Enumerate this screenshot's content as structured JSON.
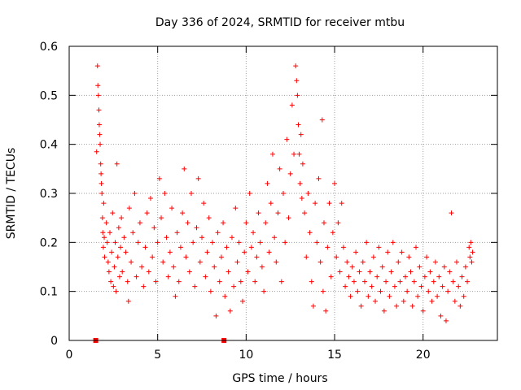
{
  "chart_data": {
    "type": "scatter",
    "title": "Day 336 of 2024, SRMTID for receiver mtbu",
    "xlabel": "GPS time / hours",
    "ylabel": "SRMTID / TECUs",
    "xlim": [
      0,
      24.2
    ],
    "ylim": [
      0,
      0.6
    ],
    "xticks": [
      0,
      5,
      10,
      15,
      20
    ],
    "yticks": [
      0,
      0.1,
      0.2,
      0.3,
      0.4,
      0.5,
      0.6
    ],
    "xtick_labels": [
      "0",
      "5",
      "10",
      "15",
      "20"
    ],
    "ytick_labels": [
      "0",
      "0.1",
      "0.2",
      "0.3",
      "0.4",
      "0.5",
      "0.6"
    ],
    "grid": true,
    "marker": "plus",
    "color": "#ff0000",
    "series": [
      {
        "name": "SRMTID",
        "points": [
          [
            1.5,
            0.0
          ],
          [
            8.75,
            0.0
          ],
          [
            1.55,
            0.385
          ],
          [
            1.6,
            0.56
          ],
          [
            1.62,
            0.52
          ],
          [
            1.65,
            0.5
          ],
          [
            1.68,
            0.47
          ],
          [
            1.7,
            0.44
          ],
          [
            1.72,
            0.42
          ],
          [
            1.75,
            0.4
          ],
          [
            1.78,
            0.36
          ],
          [
            1.8,
            0.34
          ],
          [
            1.82,
            0.32
          ],
          [
            1.85,
            0.3
          ],
          [
            1.88,
            0.25
          ],
          [
            1.9,
            0.22
          ],
          [
            1.93,
            0.19
          ],
          [
            1.95,
            0.28
          ],
          [
            1.98,
            0.21
          ],
          [
            2.0,
            0.17
          ],
          [
            2.1,
            0.24
          ],
          [
            2.15,
            0.2
          ],
          [
            2.2,
            0.16
          ],
          [
            2.25,
            0.14
          ],
          [
            2.3,
            0.22
          ],
          [
            2.35,
            0.12
          ],
          [
            2.4,
            0.18
          ],
          [
            2.45,
            0.26
          ],
          [
            2.5,
            0.11
          ],
          [
            2.55,
            0.15
          ],
          [
            2.6,
            0.2
          ],
          [
            2.65,
            0.1
          ],
          [
            2.7,
            0.36
          ],
          [
            2.75,
            0.17
          ],
          [
            2.8,
            0.23
          ],
          [
            2.85,
            0.13
          ],
          [
            2.9,
            0.19
          ],
          [
            2.95,
            0.25
          ],
          [
            3.0,
            0.14
          ],
          [
            3.1,
            0.21
          ],
          [
            3.2,
            0.18
          ],
          [
            3.3,
            0.12
          ],
          [
            3.35,
            0.08
          ],
          [
            3.4,
            0.27
          ],
          [
            3.5,
            0.16
          ],
          [
            3.6,
            0.22
          ],
          [
            3.7,
            0.3
          ],
          [
            3.8,
            0.13
          ],
          [
            3.9,
            0.2
          ],
          [
            4.0,
            0.24
          ],
          [
            4.1,
            0.15
          ],
          [
            4.2,
            0.11
          ],
          [
            4.3,
            0.19
          ],
          [
            4.4,
            0.26
          ],
          [
            4.5,
            0.14
          ],
          [
            4.6,
            0.29
          ],
          [
            4.7,
            0.17
          ],
          [
            4.8,
            0.23
          ],
          [
            4.9,
            0.12
          ],
          [
            5.0,
            0.2
          ],
          [
            5.1,
            0.33
          ],
          [
            5.2,
            0.25
          ],
          [
            5.3,
            0.16
          ],
          [
            5.4,
            0.3
          ],
          [
            5.5,
            0.21
          ],
          [
            5.6,
            0.13
          ],
          [
            5.7,
            0.18
          ],
          [
            5.8,
            0.27
          ],
          [
            5.9,
            0.15
          ],
          [
            6.0,
            0.09
          ],
          [
            6.1,
            0.22
          ],
          [
            6.2,
            0.12
          ],
          [
            6.3,
            0.19
          ],
          [
            6.4,
            0.26
          ],
          [
            6.5,
            0.35
          ],
          [
            6.6,
            0.17
          ],
          [
            6.7,
            0.24
          ],
          [
            6.8,
            0.14
          ],
          [
            6.9,
            0.3
          ],
          [
            7.0,
            0.2
          ],
          [
            7.1,
            0.11
          ],
          [
            7.2,
            0.23
          ],
          [
            7.3,
            0.33
          ],
          [
            7.4,
            0.16
          ],
          [
            7.5,
            0.21
          ],
          [
            7.6,
            0.28
          ],
          [
            7.7,
            0.13
          ],
          [
            7.8,
            0.18
          ],
          [
            7.9,
            0.25
          ],
          [
            8.0,
            0.1
          ],
          [
            8.1,
            0.2
          ],
          [
            8.2,
            0.15
          ],
          [
            8.3,
            0.05
          ],
          [
            8.4,
            0.22
          ],
          [
            8.5,
            0.12
          ],
          [
            8.6,
            0.17
          ],
          [
            8.7,
            0.24
          ],
          [
            8.8,
            0.09
          ],
          [
            8.9,
            0.19
          ],
          [
            9.0,
            0.14
          ],
          [
            9.1,
            0.06
          ],
          [
            9.2,
            0.21
          ],
          [
            9.3,
            0.11
          ],
          [
            9.4,
            0.27
          ],
          [
            9.5,
            0.16
          ],
          [
            9.6,
            0.2
          ],
          [
            9.7,
            0.12
          ],
          [
            9.8,
            0.08
          ],
          [
            9.9,
            0.18
          ],
          [
            10.0,
            0.24
          ],
          [
            10.1,
            0.14
          ],
          [
            10.2,
            0.3
          ],
          [
            10.3,
            0.19
          ],
          [
            10.4,
            0.22
          ],
          [
            10.5,
            0.12
          ],
          [
            10.6,
            0.17
          ],
          [
            10.7,
            0.26
          ],
          [
            10.8,
            0.2
          ],
          [
            10.9,
            0.15
          ],
          [
            11.0,
            0.1
          ],
          [
            11.1,
            0.24
          ],
          [
            11.2,
            0.32
          ],
          [
            11.3,
            0.18
          ],
          [
            11.4,
            0.28
          ],
          [
            11.5,
            0.38
          ],
          [
            11.6,
            0.21
          ],
          [
            11.7,
            0.16
          ],
          [
            11.8,
            0.26
          ],
          [
            11.9,
            0.35
          ],
          [
            12.0,
            0.12
          ],
          [
            12.1,
            0.3
          ],
          [
            12.2,
            0.2
          ],
          [
            12.3,
            0.41
          ],
          [
            12.4,
            0.25
          ],
          [
            12.5,
            0.34
          ],
          [
            12.6,
            0.48
          ],
          [
            12.7,
            0.38
          ],
          [
            12.8,
            0.56
          ],
          [
            12.85,
            0.53
          ],
          [
            12.9,
            0.5
          ],
          [
            12.95,
            0.44
          ],
          [
            13.0,
            0.38
          ],
          [
            13.05,
            0.32
          ],
          [
            13.1,
            0.42
          ],
          [
            13.15,
            0.29
          ],
          [
            13.2,
            0.36
          ],
          [
            13.3,
            0.26
          ],
          [
            13.4,
            0.17
          ],
          [
            13.5,
            0.3
          ],
          [
            13.6,
            0.22
          ],
          [
            13.7,
            0.12
          ],
          [
            13.8,
            0.07
          ],
          [
            13.9,
            0.28
          ],
          [
            14.0,
            0.2
          ],
          [
            14.1,
            0.33
          ],
          [
            14.2,
            0.16
          ],
          [
            14.3,
            0.45
          ],
          [
            14.35,
            0.1
          ],
          [
            14.4,
            0.24
          ],
          [
            14.5,
            0.06
          ],
          [
            14.6,
            0.19
          ],
          [
            14.7,
            0.28
          ],
          [
            14.8,
            0.13
          ],
          [
            14.9,
            0.22
          ],
          [
            15.0,
            0.32
          ],
          [
            15.1,
            0.17
          ],
          [
            15.2,
            0.24
          ],
          [
            15.3,
            0.14
          ],
          [
            15.4,
            0.28
          ],
          [
            15.5,
            0.19
          ],
          [
            15.6,
            0.11
          ],
          [
            15.7,
            0.16
          ],
          [
            15.8,
            0.13
          ],
          [
            15.9,
            0.09
          ],
          [
            16.0,
            0.15
          ],
          [
            16.1,
            0.12
          ],
          [
            16.2,
            0.18
          ],
          [
            16.3,
            0.1
          ],
          [
            16.4,
            0.14
          ],
          [
            16.5,
            0.07
          ],
          [
            16.6,
            0.16
          ],
          [
            16.7,
            0.12
          ],
          [
            16.8,
            0.2
          ],
          [
            16.9,
            0.09
          ],
          [
            17.0,
            0.14
          ],
          [
            17.1,
            0.11
          ],
          [
            17.2,
            0.17
          ],
          [
            17.3,
            0.08
          ],
          [
            17.4,
            0.13
          ],
          [
            17.5,
            0.19
          ],
          [
            17.6,
            0.1
          ],
          [
            17.7,
            0.15
          ],
          [
            17.8,
            0.06
          ],
          [
            17.9,
            0.12
          ],
          [
            18.0,
            0.18
          ],
          [
            18.1,
            0.09
          ],
          [
            18.2,
            0.14
          ],
          [
            18.3,
            0.2
          ],
          [
            18.4,
            0.11
          ],
          [
            18.5,
            0.07
          ],
          [
            18.6,
            0.16
          ],
          [
            18.7,
            0.12
          ],
          [
            18.8,
            0.18
          ],
          [
            18.9,
            0.08
          ],
          [
            19.0,
            0.13
          ],
          [
            19.1,
            0.1
          ],
          [
            19.2,
            0.17
          ],
          [
            19.3,
            0.14
          ],
          [
            19.4,
            0.07
          ],
          [
            19.5,
            0.12
          ],
          [
            19.6,
            0.19
          ],
          [
            19.7,
            0.09
          ],
          [
            19.8,
            0.15
          ],
          [
            19.9,
            0.11
          ],
          [
            20.0,
            0.06
          ],
          [
            20.1,
            0.13
          ],
          [
            20.2,
            0.17
          ],
          [
            20.3,
            0.1
          ],
          [
            20.4,
            0.14
          ],
          [
            20.5,
            0.08
          ],
          [
            20.6,
            0.12
          ],
          [
            20.7,
            0.16
          ],
          [
            20.8,
            0.09
          ],
          [
            20.9,
            0.13
          ],
          [
            21.0,
            0.05
          ],
          [
            21.1,
            0.11
          ],
          [
            21.2,
            0.15
          ],
          [
            21.3,
            0.04
          ],
          [
            21.4,
            0.1
          ],
          [
            21.5,
            0.14
          ],
          [
            21.6,
            0.26
          ],
          [
            21.7,
            0.12
          ],
          [
            21.8,
            0.08
          ],
          [
            21.9,
            0.16
          ],
          [
            22.0,
            0.11
          ],
          [
            22.1,
            0.07
          ],
          [
            22.2,
            0.13
          ],
          [
            22.3,
            0.09
          ],
          [
            22.4,
            0.15
          ],
          [
            22.5,
            0.12
          ],
          [
            22.6,
            0.19
          ],
          [
            22.65,
            0.17
          ],
          [
            22.7,
            0.2
          ],
          [
            22.75,
            0.16
          ],
          [
            22.8,
            0.18
          ]
        ]
      }
    ]
  }
}
